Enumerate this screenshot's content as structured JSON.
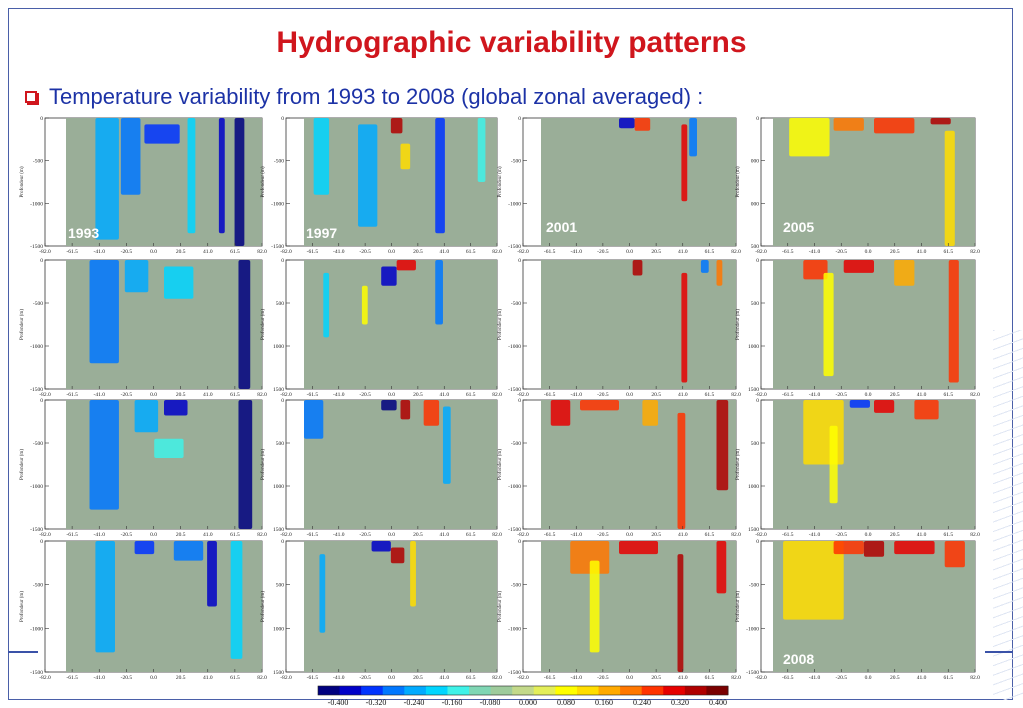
{
  "slide": {
    "title": "Hydrographic variability patterns",
    "subtitle": "Temperature variability from 1993 to 2008 (global zonal averaged) :"
  },
  "chart_data": {
    "type": "heatmap",
    "rows": 4,
    "cols": 4,
    "xlabel": "",
    "ylabel": "Profondeur (m)",
    "xlim": [
      -82.0,
      82.0
    ],
    "ylim": [
      -1500,
      0
    ],
    "x_ticks": [
      "-82.0",
      "-61.5",
      "-41.0",
      "-20.5",
      "0.0",
      "20.5",
      "41.0",
      "61.5",
      "82.0"
    ],
    "y_ticks_primary": [
      "0",
      "-500",
      "-1000",
      "-1500"
    ],
    "y_ticks_alt": [
      "0",
      "500",
      "1000",
      "1500"
    ],
    "y_ticks_truncated": [
      "0",
      "000",
      "000",
      "500"
    ],
    "panel_labels": [
      {
        "index": 0,
        "text": "1993"
      },
      {
        "index": 1,
        "text": "1997"
      },
      {
        "index": 2,
        "text": "2001"
      },
      {
        "index": 3,
        "text": "2005"
      },
      {
        "index": 15,
        "text": "2008"
      }
    ],
    "colorbar": {
      "ticks": [
        "-0.400",
        "-0.320",
        "-0.240",
        "-0.160",
        "-0.080",
        "0.000",
        "0.080",
        "0.160",
        "0.240",
        "0.320",
        "0.400"
      ],
      "colors": [
        "#00007f",
        "#0000c8",
        "#0033ff",
        "#0077ff",
        "#00aaff",
        "#00d5ff",
        "#3ff2e8",
        "#7fd6b4",
        "#9ecb9c",
        "#c3d98a",
        "#e3ee5a",
        "#ffff00",
        "#ffdd00",
        "#ffaa00",
        "#ff7700",
        "#ff3300",
        "#e60000",
        "#b00000",
        "#7a0000"
      ]
    }
  },
  "colors": {
    "title": "#d0161d",
    "subtitle": "#1c32a6",
    "field_background": "#9aae98",
    "frame": "#4a5fa8"
  }
}
